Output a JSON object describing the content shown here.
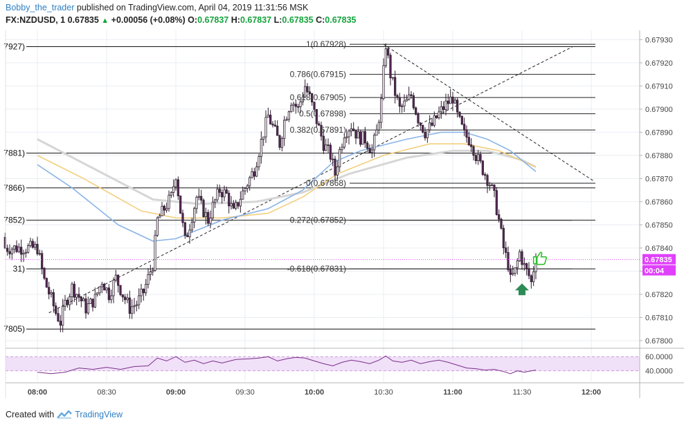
{
  "header": {
    "author": "Bobby_the_trader",
    "published_text": "published on TradingView.com, April 04, 2019 11:31:56 MSK"
  },
  "symbol": {
    "name": "FX:NZDUSD, 1",
    "last": "0.67835",
    "change": "+0.00056 (+0.08%)",
    "o_label": "O:",
    "o": "0.67837",
    "h_label": "H:",
    "h": "0.67837",
    "l_label": "L:",
    "l": "0.67835",
    "c_label": "C:",
    "c": "0.67835"
  },
  "footer": {
    "created_with": "Created with",
    "brand": "TradingView"
  },
  "colors": {
    "grid": "#e9edf2",
    "candle_up": "#ffffff",
    "candle_down": "#5b2a5b",
    "ma_blue": "#8ab4e8",
    "ma_orange": "#f2cf7e",
    "ma_gray": "#d6d6d6",
    "rsi_line": "#7b2d8a",
    "rsi_band": "#f0e0f8",
    "price_tag": "#e040fb",
    "arrow_green": "#2e8b57",
    "thumb_green": "#2ebd2e"
  },
  "chart_data": {
    "type": "candlestick",
    "symbol": "FX:NZDUSD",
    "interval": "1",
    "y_axis": {
      "range": [
        0.67797,
        0.67934
      ],
      "ticks": [
        "0.67930",
        "0.67920",
        "0.67910",
        "0.67900",
        "0.67890",
        "0.67880",
        "0.67870",
        "0.67860",
        "0.67850",
        "0.67840",
        "0.67830",
        "0.67820",
        "0.67810",
        "0.67800"
      ]
    },
    "x_axis": {
      "ticks": [
        {
          "label": "08:00",
          "min": 0,
          "bold": true
        },
        {
          "label": "08:30",
          "min": 30,
          "bold": false
        },
        {
          "label": "09:00",
          "min": 60,
          "bold": true
        },
        {
          "label": "09:30",
          "min": 90,
          "bold": false
        },
        {
          "label": "10:00",
          "min": 120,
          "bold": true
        },
        {
          "label": "10:30",
          "min": 150,
          "bold": false
        },
        {
          "label": "11:00",
          "min": 180,
          "bold": true
        },
        {
          "label": "11:30",
          "min": 210,
          "bold": false
        },
        {
          "label": "12:00",
          "min": 240,
          "bold": true
        }
      ]
    },
    "last_price": {
      "value": 0.67835,
      "label": "0.67835",
      "countdown": "00:04"
    },
    "fibonacci": [
      {
        "ratio": "1",
        "price": 0.67928,
        "label": "1(0.67928)"
      },
      {
        "ratio": "0.786",
        "price": 0.67915,
        "label": "0.786(0.67915)"
      },
      {
        "ratio": "0.618",
        "price": 0.67905,
        "label": "0.618(0.67905)"
      },
      {
        "ratio": "0.5",
        "price": 0.67898,
        "label": "0.5(0.67898)"
      },
      {
        "ratio": "0.382",
        "price": 0.67891,
        "label": "0.382(0.67891)"
      },
      {
        "ratio": "0",
        "price": 0.67868,
        "label": "0(0.67868)"
      },
      {
        "ratio": "0.272",
        "price": 0.67852,
        "label": "0.272(0.67852)"
      },
      {
        "ratio": "-0.618",
        "price": 0.67831,
        "label": "-0.618(0.67831)"
      }
    ],
    "level_lines": [
      {
        "price": 0.67927,
        "label": "7927)"
      },
      {
        "price": 0.67881,
        "label": "7881)"
      },
      {
        "price": 0.67866,
        "label": "7866)"
      },
      {
        "price": 0.67852,
        "label": "7852)"
      },
      {
        "price": 0.67831,
        "label": "31)"
      },
      {
        "price": 0.67805,
        "label": "7805)"
      }
    ],
    "trend_lines": [
      {
        "from": {
          "min": 5,
          "price": 0.67812
        },
        "to": {
          "min": 232,
          "price": 0.67927
        },
        "dashed": true
      },
      {
        "from": {
          "min": 150,
          "price": 0.67928
        },
        "to": {
          "min": 241,
          "price": 0.67869
        },
        "dashed": true
      }
    ],
    "moving_averages": [
      {
        "name": "blue",
        "points": [
          [
            0,
            0.67876
          ],
          [
            15,
            0.67866
          ],
          [
            35,
            0.6785
          ],
          [
            50,
            0.67843
          ],
          [
            60,
            0.67844
          ],
          [
            80,
            0.67852
          ],
          [
            100,
            0.67857
          ],
          [
            115,
            0.67865
          ],
          [
            128,
            0.67877
          ],
          [
            140,
            0.67882
          ],
          [
            160,
            0.67887
          ],
          [
            175,
            0.6789
          ],
          [
            185,
            0.6789
          ],
          [
            195,
            0.67887
          ],
          [
            205,
            0.67882
          ],
          [
            216,
            0.67873
          ]
        ]
      },
      {
        "name": "orange",
        "points": [
          [
            0,
            0.6788
          ],
          [
            20,
            0.6787
          ],
          [
            45,
            0.67856
          ],
          [
            60,
            0.67853
          ],
          [
            80,
            0.67853
          ],
          [
            100,
            0.67855
          ],
          [
            115,
            0.67862
          ],
          [
            130,
            0.67872
          ],
          [
            150,
            0.6788
          ],
          [
            170,
            0.67885
          ],
          [
            185,
            0.67885
          ],
          [
            200,
            0.67882
          ],
          [
            216,
            0.67875
          ]
        ]
      },
      {
        "name": "gray",
        "points": [
          [
            0,
            0.67887
          ],
          [
            25,
            0.67874
          ],
          [
            50,
            0.67861
          ],
          [
            70,
            0.67859
          ],
          [
            95,
            0.6786
          ],
          [
            115,
            0.67864
          ],
          [
            135,
            0.67872
          ],
          [
            160,
            0.67879
          ],
          [
            180,
            0.67882
          ],
          [
            195,
            0.67882
          ],
          [
            210,
            0.67878
          ],
          [
            216,
            0.67875
          ]
        ]
      }
    ],
    "candle_path": [
      [
        0,
        0.6784
      ],
      [
        3,
        0.67826
      ],
      [
        6,
        0.67818
      ],
      [
        8,
        0.67812
      ],
      [
        10,
        0.67808
      ],
      [
        12,
        0.67816
      ],
      [
        15,
        0.67823
      ],
      [
        18,
        0.67819
      ],
      [
        21,
        0.67814
      ],
      [
        25,
        0.67818
      ],
      [
        28,
        0.67826
      ],
      [
        31,
        0.6782
      ],
      [
        34,
        0.67827
      ],
      [
        37,
        0.6782
      ],
      [
        40,
        0.67814
      ],
      [
        43,
        0.67816
      ],
      [
        46,
        0.67821
      ],
      [
        48,
        0.67827
      ],
      [
        50,
        0.67833
      ],
      [
        52,
        0.67852
      ],
      [
        55,
        0.67857
      ],
      [
        58,
        0.67862
      ],
      [
        60,
        0.67872
      ],
      [
        62,
        0.67856
      ],
      [
        64,
        0.67843
      ],
      [
        66,
        0.6785
      ],
      [
        69,
        0.67862
      ],
      [
        72,
        0.67856
      ],
      [
        74,
        0.67852
      ],
      [
        76,
        0.67858
      ],
      [
        79,
        0.67865
      ],
      [
        82,
        0.67863
      ],
      [
        85,
        0.67855
      ],
      [
        88,
        0.67862
      ],
      [
        91,
        0.67868
      ],
      [
        94,
        0.67874
      ],
      [
        96,
        0.67882
      ],
      [
        98,
        0.6789
      ],
      [
        100,
        0.67897
      ],
      [
        103,
        0.6789
      ],
      [
        105,
        0.67885
      ],
      [
        107,
        0.67895
      ],
      [
        110,
        0.67904
      ],
      [
        113,
        0.679
      ],
      [
        116,
        0.6791
      ],
      [
        118,
        0.67905
      ],
      [
        121,
        0.67895
      ],
      [
        124,
        0.67885
      ],
      [
        127,
        0.6788
      ],
      [
        129,
        0.67872
      ],
      [
        131,
        0.67882
      ],
      [
        133,
        0.6789
      ],
      [
        136,
        0.67893
      ],
      [
        139,
        0.67888
      ],
      [
        142,
        0.67887
      ],
      [
        145,
        0.67882
      ],
      [
        147,
        0.6789
      ],
      [
        149,
        0.67903
      ],
      [
        150,
        0.67916
      ],
      [
        151,
        0.67928
      ],
      [
        153,
        0.67915
      ],
      [
        155,
        0.67907
      ],
      [
        157,
        0.679
      ],
      [
        160,
        0.67903
      ],
      [
        162,
        0.67906
      ],
      [
        165,
        0.67896
      ],
      [
        168,
        0.6789
      ],
      [
        171,
        0.67893
      ],
      [
        174,
        0.67898
      ],
      [
        177,
        0.67902
      ],
      [
        180,
        0.67905
      ],
      [
        182,
        0.67897
      ],
      [
        185,
        0.67889
      ],
      [
        188,
        0.67886
      ],
      [
        190,
        0.6788
      ],
      [
        192,
        0.67876
      ],
      [
        194,
        0.67872
      ],
      [
        196,
        0.67868
      ],
      [
        198,
        0.67862
      ],
      [
        200,
        0.67852
      ],
      [
        202,
        0.6784
      ],
      [
        204,
        0.67833
      ],
      [
        205,
        0.67826
      ],
      [
        207,
        0.6783
      ],
      [
        209,
        0.67838
      ],
      [
        211,
        0.67832
      ],
      [
        213,
        0.67828
      ],
      [
        214,
        0.67825
      ],
      [
        215,
        0.67831
      ],
      [
        216,
        0.67835
      ]
    ]
  },
  "rsi": {
    "range": [
      25,
      70
    ],
    "band": [
      40,
      60
    ],
    "ticks": [
      {
        "label": "60.0000",
        "value": 60
      },
      {
        "label": "40.0000",
        "value": 40
      }
    ],
    "points": [
      [
        0,
        38
      ],
      [
        6,
        36
      ],
      [
        12,
        38
      ],
      [
        18,
        44
      ],
      [
        24,
        42
      ],
      [
        30,
        45
      ],
      [
        36,
        42
      ],
      [
        42,
        46
      ],
      [
        48,
        47
      ],
      [
        52,
        58
      ],
      [
        56,
        54
      ],
      [
        60,
        60
      ],
      [
        64,
        52
      ],
      [
        68,
        55
      ],
      [
        72,
        50
      ],
      [
        76,
        54
      ],
      [
        80,
        51
      ],
      [
        86,
        56
      ],
      [
        92,
        57
      ],
      [
        96,
        58
      ],
      [
        100,
        60
      ],
      [
        104,
        54
      ],
      [
        108,
        57
      ],
      [
        112,
        59
      ],
      [
        116,
        58
      ],
      [
        120,
        54
      ],
      [
        124,
        50
      ],
      [
        128,
        47
      ],
      [
        132,
        52
      ],
      [
        136,
        55
      ],
      [
        140,
        53
      ],
      [
        144,
        50
      ],
      [
        148,
        55
      ],
      [
        151,
        61
      ],
      [
        154,
        54
      ],
      [
        158,
        52
      ],
      [
        162,
        55
      ],
      [
        166,
        50
      ],
      [
        170,
        53
      ],
      [
        174,
        55
      ],
      [
        178,
        52
      ],
      [
        182,
        48
      ],
      [
        186,
        44
      ],
      [
        190,
        43
      ],
      [
        194,
        41
      ],
      [
        198,
        42
      ],
      [
        202,
        39
      ],
      [
        205,
        36
      ],
      [
        208,
        40
      ],
      [
        211,
        38
      ],
      [
        214,
        40
      ],
      [
        216,
        41
      ]
    ]
  },
  "markers": {
    "up_arrow": "up-arrow",
    "thumbs_up": "thumbs-up"
  }
}
